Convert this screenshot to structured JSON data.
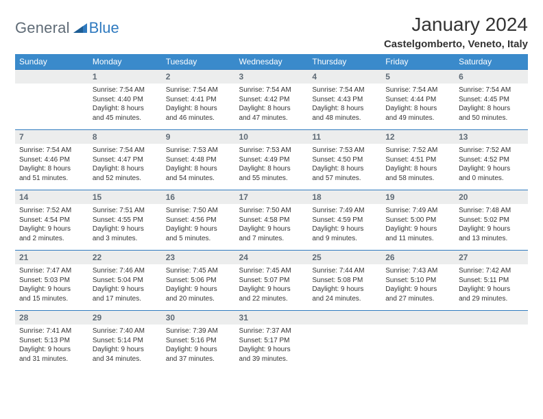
{
  "logo": {
    "general": "General",
    "blue": "Blue"
  },
  "title": "January 2024",
  "location": "Castelgomberto, Veneto, Italy",
  "colors": {
    "header_bg": "#3a8acb",
    "header_text": "#ffffff",
    "daynum_bg": "#eceded",
    "daynum_text": "#5f6b76",
    "cell_border": "#2f7abf",
    "body_text": "#333333",
    "logo_gray": "#5f6b76",
    "logo_blue": "#2f7abf"
  },
  "typography": {
    "month_title_fontsize": 28,
    "location_fontsize": 15,
    "day_header_fontsize": 12,
    "daynum_fontsize": 12,
    "daytext_fontsize": 10
  },
  "day_headers": [
    "Sunday",
    "Monday",
    "Tuesday",
    "Wednesday",
    "Thursday",
    "Friday",
    "Saturday"
  ],
  "weeks": [
    [
      {
        "num": "",
        "lines": []
      },
      {
        "num": "1",
        "lines": [
          "Sunrise: 7:54 AM",
          "Sunset: 4:40 PM",
          "Daylight: 8 hours",
          "and 45 minutes."
        ]
      },
      {
        "num": "2",
        "lines": [
          "Sunrise: 7:54 AM",
          "Sunset: 4:41 PM",
          "Daylight: 8 hours",
          "and 46 minutes."
        ]
      },
      {
        "num": "3",
        "lines": [
          "Sunrise: 7:54 AM",
          "Sunset: 4:42 PM",
          "Daylight: 8 hours",
          "and 47 minutes."
        ]
      },
      {
        "num": "4",
        "lines": [
          "Sunrise: 7:54 AM",
          "Sunset: 4:43 PM",
          "Daylight: 8 hours",
          "and 48 minutes."
        ]
      },
      {
        "num": "5",
        "lines": [
          "Sunrise: 7:54 AM",
          "Sunset: 4:44 PM",
          "Daylight: 8 hours",
          "and 49 minutes."
        ]
      },
      {
        "num": "6",
        "lines": [
          "Sunrise: 7:54 AM",
          "Sunset: 4:45 PM",
          "Daylight: 8 hours",
          "and 50 minutes."
        ]
      }
    ],
    [
      {
        "num": "7",
        "lines": [
          "Sunrise: 7:54 AM",
          "Sunset: 4:46 PM",
          "Daylight: 8 hours",
          "and 51 minutes."
        ]
      },
      {
        "num": "8",
        "lines": [
          "Sunrise: 7:54 AM",
          "Sunset: 4:47 PM",
          "Daylight: 8 hours",
          "and 52 minutes."
        ]
      },
      {
        "num": "9",
        "lines": [
          "Sunrise: 7:53 AM",
          "Sunset: 4:48 PM",
          "Daylight: 8 hours",
          "and 54 minutes."
        ]
      },
      {
        "num": "10",
        "lines": [
          "Sunrise: 7:53 AM",
          "Sunset: 4:49 PM",
          "Daylight: 8 hours",
          "and 55 minutes."
        ]
      },
      {
        "num": "11",
        "lines": [
          "Sunrise: 7:53 AM",
          "Sunset: 4:50 PM",
          "Daylight: 8 hours",
          "and 57 minutes."
        ]
      },
      {
        "num": "12",
        "lines": [
          "Sunrise: 7:52 AM",
          "Sunset: 4:51 PM",
          "Daylight: 8 hours",
          "and 58 minutes."
        ]
      },
      {
        "num": "13",
        "lines": [
          "Sunrise: 7:52 AM",
          "Sunset: 4:52 PM",
          "Daylight: 9 hours",
          "and 0 minutes."
        ]
      }
    ],
    [
      {
        "num": "14",
        "lines": [
          "Sunrise: 7:52 AM",
          "Sunset: 4:54 PM",
          "Daylight: 9 hours",
          "and 2 minutes."
        ]
      },
      {
        "num": "15",
        "lines": [
          "Sunrise: 7:51 AM",
          "Sunset: 4:55 PM",
          "Daylight: 9 hours",
          "and 3 minutes."
        ]
      },
      {
        "num": "16",
        "lines": [
          "Sunrise: 7:50 AM",
          "Sunset: 4:56 PM",
          "Daylight: 9 hours",
          "and 5 minutes."
        ]
      },
      {
        "num": "17",
        "lines": [
          "Sunrise: 7:50 AM",
          "Sunset: 4:58 PM",
          "Daylight: 9 hours",
          "and 7 minutes."
        ]
      },
      {
        "num": "18",
        "lines": [
          "Sunrise: 7:49 AM",
          "Sunset: 4:59 PM",
          "Daylight: 9 hours",
          "and 9 minutes."
        ]
      },
      {
        "num": "19",
        "lines": [
          "Sunrise: 7:49 AM",
          "Sunset: 5:00 PM",
          "Daylight: 9 hours",
          "and 11 minutes."
        ]
      },
      {
        "num": "20",
        "lines": [
          "Sunrise: 7:48 AM",
          "Sunset: 5:02 PM",
          "Daylight: 9 hours",
          "and 13 minutes."
        ]
      }
    ],
    [
      {
        "num": "21",
        "lines": [
          "Sunrise: 7:47 AM",
          "Sunset: 5:03 PM",
          "Daylight: 9 hours",
          "and 15 minutes."
        ]
      },
      {
        "num": "22",
        "lines": [
          "Sunrise: 7:46 AM",
          "Sunset: 5:04 PM",
          "Daylight: 9 hours",
          "and 17 minutes."
        ]
      },
      {
        "num": "23",
        "lines": [
          "Sunrise: 7:45 AM",
          "Sunset: 5:06 PM",
          "Daylight: 9 hours",
          "and 20 minutes."
        ]
      },
      {
        "num": "24",
        "lines": [
          "Sunrise: 7:45 AM",
          "Sunset: 5:07 PM",
          "Daylight: 9 hours",
          "and 22 minutes."
        ]
      },
      {
        "num": "25",
        "lines": [
          "Sunrise: 7:44 AM",
          "Sunset: 5:08 PM",
          "Daylight: 9 hours",
          "and 24 minutes."
        ]
      },
      {
        "num": "26",
        "lines": [
          "Sunrise: 7:43 AM",
          "Sunset: 5:10 PM",
          "Daylight: 9 hours",
          "and 27 minutes."
        ]
      },
      {
        "num": "27",
        "lines": [
          "Sunrise: 7:42 AM",
          "Sunset: 5:11 PM",
          "Daylight: 9 hours",
          "and 29 minutes."
        ]
      }
    ],
    [
      {
        "num": "28",
        "lines": [
          "Sunrise: 7:41 AM",
          "Sunset: 5:13 PM",
          "Daylight: 9 hours",
          "and 31 minutes."
        ]
      },
      {
        "num": "29",
        "lines": [
          "Sunrise: 7:40 AM",
          "Sunset: 5:14 PM",
          "Daylight: 9 hours",
          "and 34 minutes."
        ]
      },
      {
        "num": "30",
        "lines": [
          "Sunrise: 7:39 AM",
          "Sunset: 5:16 PM",
          "Daylight: 9 hours",
          "and 37 minutes."
        ]
      },
      {
        "num": "31",
        "lines": [
          "Sunrise: 7:37 AM",
          "Sunset: 5:17 PM",
          "Daylight: 9 hours",
          "and 39 minutes."
        ]
      },
      {
        "num": "",
        "lines": []
      },
      {
        "num": "",
        "lines": []
      },
      {
        "num": "",
        "lines": []
      }
    ]
  ]
}
